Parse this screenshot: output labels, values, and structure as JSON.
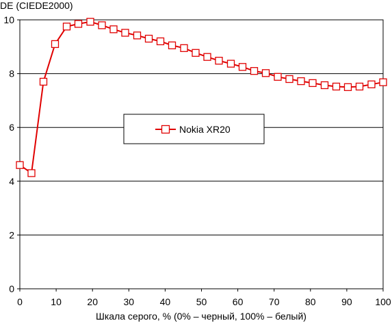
{
  "chart_data": {
    "type": "line",
    "title": "",
    "ylabel": "DE (CIEDE2000)",
    "xlabel": "Шкала серого, % (0% – черный, 100% – белый)",
    "xlim": [
      0,
      100
    ],
    "ylim": [
      0,
      10
    ],
    "xticks": [
      "0",
      "10",
      "20",
      "30",
      "40",
      "50",
      "60",
      "70",
      "80",
      "90",
      "100"
    ],
    "yticks": [
      "0",
      "2",
      "4",
      "6",
      "8",
      "10"
    ],
    "grid": "horizontal",
    "legend_position": "center",
    "series": [
      {
        "name": "Nokia XR20",
        "color": "#e00000",
        "marker": "square-open",
        "x": [
          0,
          3.2,
          6.5,
          9.7,
          12.9,
          16.1,
          19.4,
          22.6,
          25.8,
          29.0,
          32.3,
          35.5,
          38.7,
          41.9,
          45.2,
          48.4,
          51.6,
          54.8,
          58.1,
          61.3,
          64.5,
          67.7,
          71.0,
          74.2,
          77.4,
          80.6,
          83.9,
          87.1,
          90.3,
          93.5,
          96.8,
          100
        ],
        "y": [
          4.6,
          4.3,
          7.7,
          9.1,
          9.75,
          9.85,
          9.93,
          9.8,
          9.65,
          9.52,
          9.42,
          9.3,
          9.2,
          9.05,
          8.95,
          8.77,
          8.62,
          8.48,
          8.37,
          8.25,
          8.1,
          8.02,
          7.88,
          7.8,
          7.72,
          7.65,
          7.57,
          7.52,
          7.5,
          7.52,
          7.6,
          7.68
        ]
      }
    ]
  }
}
